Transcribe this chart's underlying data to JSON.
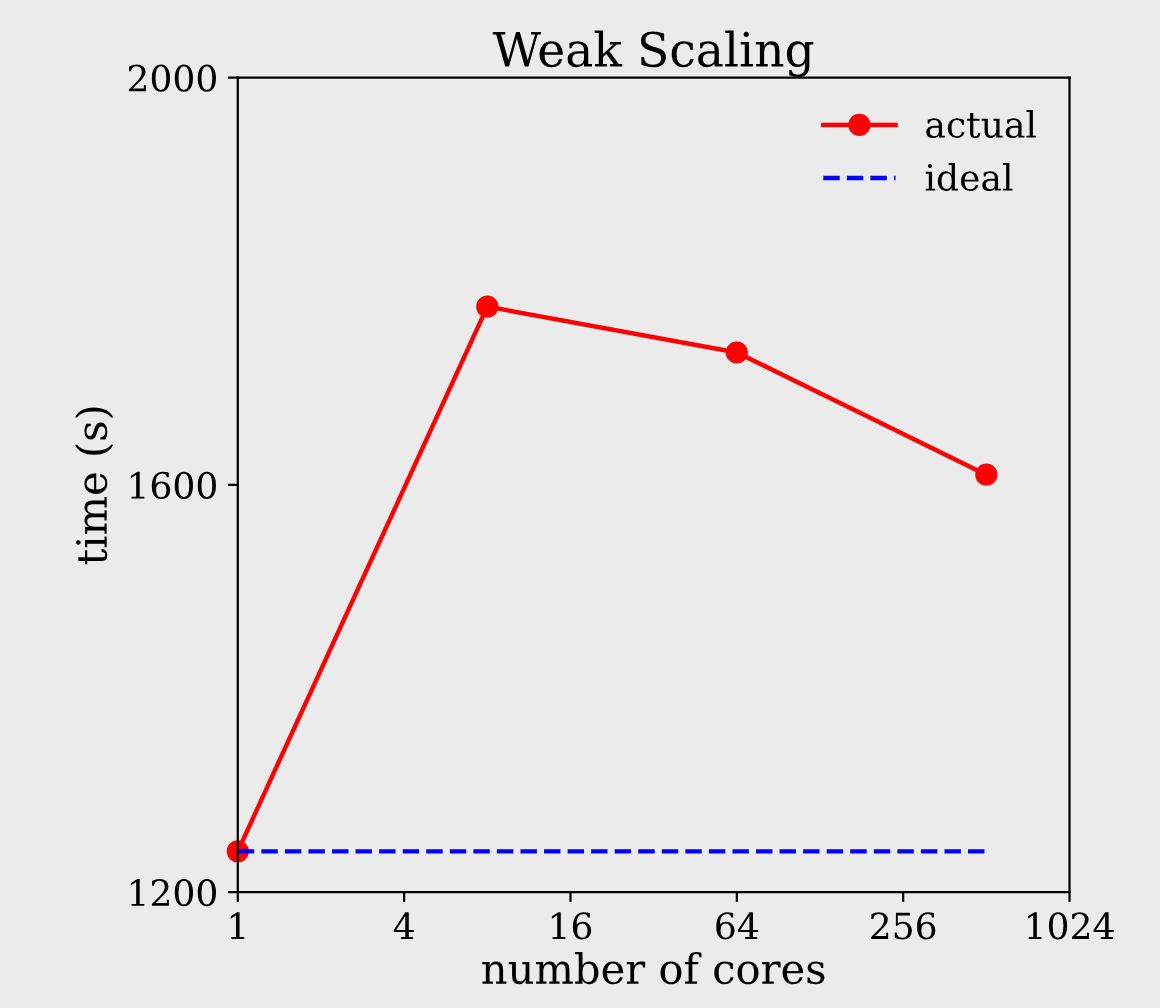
{
  "chart_data": {
    "type": "line",
    "title": "Weak Scaling",
    "xlabel": "number of cores",
    "ylabel": "time (s)",
    "log": "x",
    "x": [
      1,
      8,
      64,
      512
    ],
    "series": [
      {
        "name": "actual",
        "color": "#ff0000",
        "values": [
          1240,
          1775,
          1730,
          1610
        ],
        "marker": "circle",
        "line_style": "solid"
      },
      {
        "name": "ideal",
        "color": "#0000ff",
        "values": [
          1240,
          1240,
          1240,
          1240
        ],
        "marker": "none",
        "line_style": "dashed"
      }
    ],
    "xlim": [
      1,
      1024
    ],
    "xticks": [
      1,
      4,
      16,
      64,
      256,
      1024
    ],
    "ylim": [
      1200,
      2000
    ],
    "yticks": [
      1200,
      1600,
      2000
    ],
    "grid": false,
    "legend": "top right"
  }
}
